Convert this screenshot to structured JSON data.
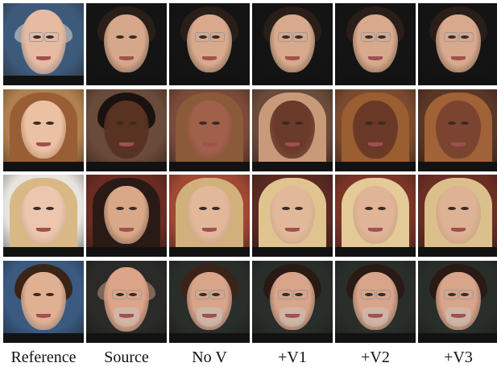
{
  "figure": {
    "columns": [
      {
        "id": "reference",
        "label": "Reference"
      },
      {
        "id": "source",
        "label": "Source"
      },
      {
        "id": "no_v",
        "label": "No V"
      },
      {
        "id": "v1",
        "label": "+V1"
      },
      {
        "id": "v2",
        "label": "+V2"
      },
      {
        "id": "v3",
        "label": "+V3"
      }
    ],
    "rows": [
      {
        "row": 1,
        "description": "Reference: older bald man with glasses; Source: young man with dark curly hair; results add glasses to source",
        "cells": [
          {
            "col": "reference",
            "bg": "#3e5a7a",
            "skin": "#e6bba2",
            "hair": "#d9d2cc",
            "style": "bald-glasses"
          },
          {
            "col": "source",
            "bg": "#141414",
            "skin": "#d6a78a",
            "hair": "#2a1e18",
            "style": "short"
          },
          {
            "col": "no_v",
            "bg": "#141414",
            "skin": "#d8a98c",
            "hair": "#2a1e18",
            "style": "short-glasses"
          },
          {
            "col": "v1",
            "bg": "#141414",
            "skin": "#d8a98c",
            "hair": "#2a1e18",
            "style": "short-glasses"
          },
          {
            "col": "v2",
            "bg": "#141414",
            "skin": "#d8a98c",
            "hair": "#2a1e18",
            "style": "short-glasses"
          },
          {
            "col": "v3",
            "bg": "#141414",
            "skin": "#d8a98c",
            "hair": "#2a1e18",
            "style": "short-glasses"
          }
        ]
      },
      {
        "row": 2,
        "description": "Reference: woman with auburn hair; Source: dark-skinned young man; results blend",
        "cells": [
          {
            "col": "reference",
            "bg": "#b0804e",
            "skin": "#ecc0a2",
            "hair": "#9a5e34",
            "style": "long"
          },
          {
            "col": "source",
            "bg": "#6a4a3a",
            "skin": "#5a3222",
            "hair": "#1a1210",
            "style": "short"
          },
          {
            "col": "no_v",
            "bg": "#7a4a3a",
            "skin": "#a0604a",
            "hair": "#8a5a3a",
            "style": "long"
          },
          {
            "col": "v1",
            "bg": "#6a4a3a",
            "skin": "#6a3a2a",
            "hair": "#c89a7a",
            "style": "long"
          },
          {
            "col": "v2",
            "bg": "#7a4a30",
            "skin": "#6a3826",
            "hair": "#9a5e30",
            "style": "long"
          },
          {
            "col": "v3",
            "bg": "#5a3626",
            "skin": "#7a4430",
            "hair": "#a06236",
            "style": "long"
          }
        ]
      },
      {
        "row": 3,
        "description": "Reference: blonde woman; Source: dark-haired woman; results blonde hair on source face",
        "cells": [
          {
            "col": "reference",
            "bg": "#e8e4e0",
            "skin": "#ecc6ae",
            "hair": "#d8b884",
            "style": "long"
          },
          {
            "col": "source",
            "bg": "#6a2c22",
            "skin": "#d8a888",
            "hair": "#2a1a16",
            "style": "long"
          },
          {
            "col": "no_v",
            "bg": "#a04834",
            "skin": "#e2b89a",
            "hair": "#d2b07c",
            "style": "long"
          },
          {
            "col": "v1",
            "bg": "#5a2a22",
            "skin": "#e2b89a",
            "hair": "#e0c490",
            "style": "long"
          },
          {
            "col": "v2",
            "bg": "#7a3428",
            "skin": "#e0b496",
            "hair": "#e4ca96",
            "style": "long"
          },
          {
            "col": "v3",
            "bg": "#6a2e24",
            "skin": "#deb294",
            "hair": "#dcc08c",
            "style": "long"
          }
        ]
      },
      {
        "row": 4,
        "description": "Reference: young man with brown hair; Source: older man with glasses and grey beard; results add brown hair",
        "cells": [
          {
            "col": "reference",
            "bg": "#3a5a80",
            "skin": "#e0b092",
            "hair": "#3a2418",
            "style": "short"
          },
          {
            "col": "source",
            "bg": "#2a2a28",
            "skin": "#dca488",
            "hair": "#b89078",
            "style": "bald-glasses-beard"
          },
          {
            "col": "no_v",
            "bg": "#2a2e2a",
            "skin": "#d8a48a",
            "hair": "#3a2418",
            "style": "short-glasses-beard"
          },
          {
            "col": "v1",
            "bg": "#2a2e2a",
            "skin": "#d8a48a",
            "hair": "#2a1a14",
            "style": "short-glasses-beard"
          },
          {
            "col": "v2",
            "bg": "#2a2e2a",
            "skin": "#d8a48a",
            "hair": "#2a1a14",
            "style": "short-glasses-beard"
          },
          {
            "col": "v3",
            "bg": "#2a2e2a",
            "skin": "#d8a48a",
            "hair": "#2a1a14",
            "style": "short-glasses-beard"
          }
        ]
      }
    ]
  }
}
